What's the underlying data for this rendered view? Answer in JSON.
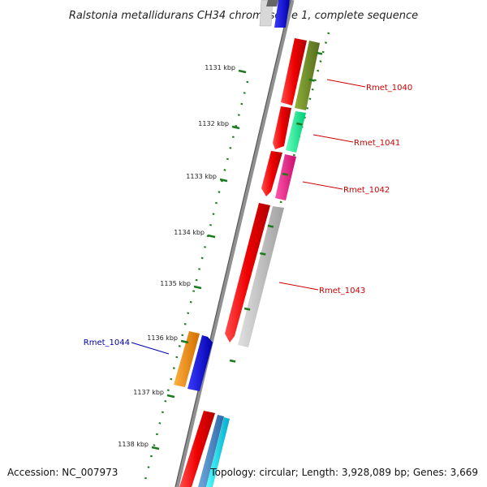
{
  "title": "Ralstonia metallidurans CH34 chromosome 1, complete sequence",
  "footer": {
    "accession": "Accession: NC_007973",
    "summary": "Topology: circular; Length: 3,928,089 bp; Genes: 3,669"
  },
  "kbp_labels": [
    "1131 kbp",
    "1132 kbp",
    "1133 kbp",
    "1134 kbp",
    "1135 kbp",
    "1136 kbp",
    "1137 kbp",
    "1138 kbp"
  ],
  "gene_labels": [
    {
      "text": "Rmet_1040",
      "color": "#cc0000"
    },
    {
      "text": "Rmet_1041",
      "color": "#cc0000"
    },
    {
      "text": "Rmet_1042",
      "color": "#cc0000"
    },
    {
      "text": "Rmet_1043",
      "color": "#cc0000"
    },
    {
      "text": "Rmet_1044",
      "color": "#0000aa"
    }
  ],
  "colors": {
    "backbone": "#808080",
    "cds": "#ee0000",
    "tick_green": "#1e7a1e",
    "gene_1040": "#6b8e23",
    "gene_1041": "#00ee99",
    "gene_1042": "#ee1188",
    "gene_1043": "#c0c0c0",
    "gene_1044_orange": "#ff8c00",
    "gene_1044_blue": "#0000ee"
  }
}
